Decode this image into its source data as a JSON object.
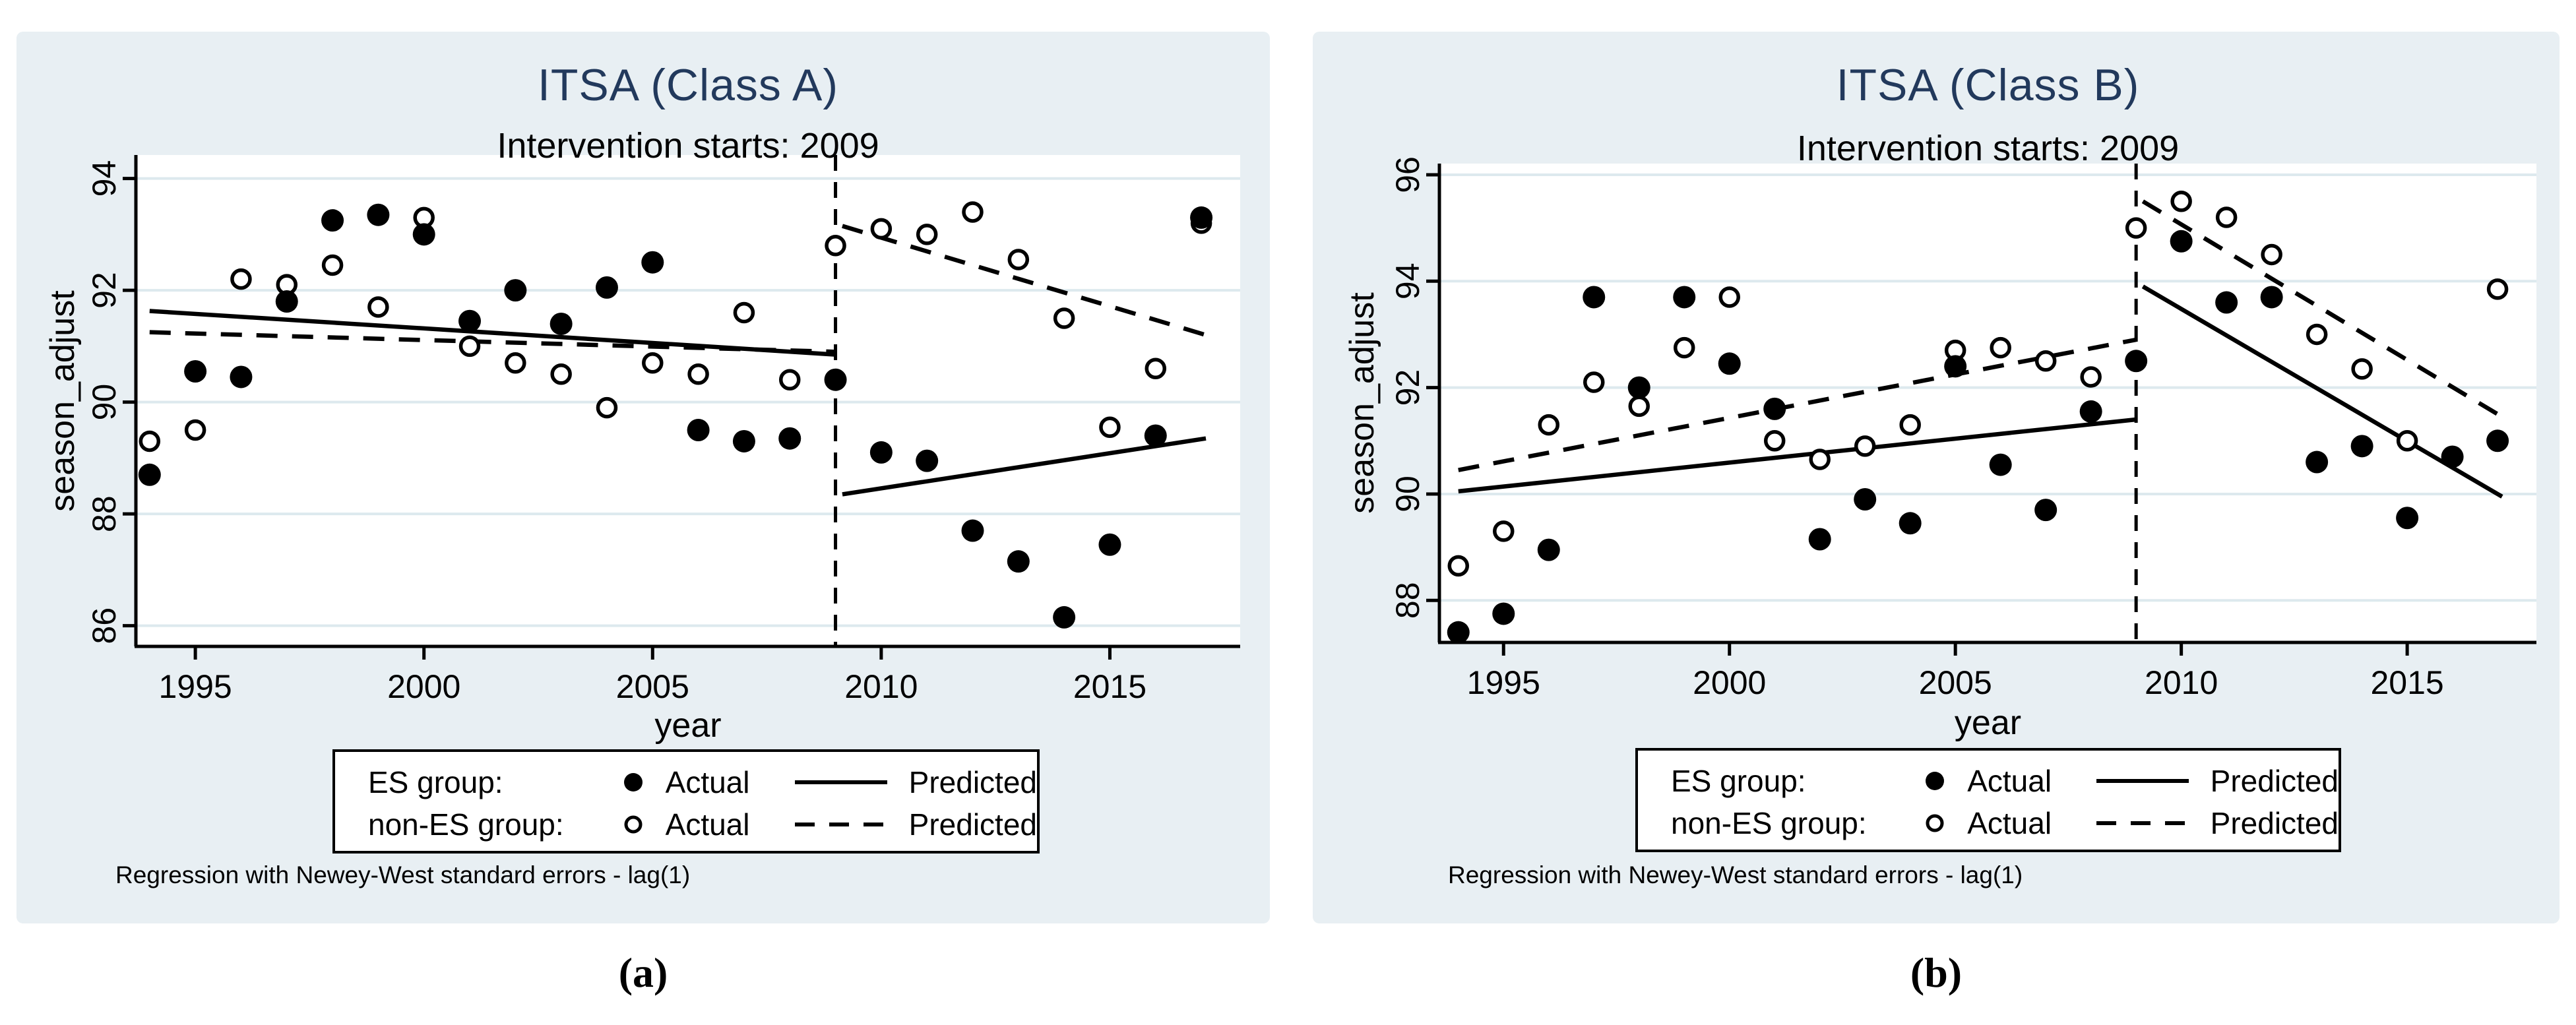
{
  "figure": {
    "note": "Regression with Newey-West standard errors - lag(1)",
    "captions": [
      "(a)",
      "(b)"
    ],
    "legend": {
      "row1_label": "ES group:",
      "row2_label": "non-ES group:",
      "actual_label": "Actual",
      "predicted_label": "Predicted"
    },
    "colors": {
      "panel_background": "#e8eff3",
      "plot_background": "#ffffff",
      "gridline": "#dde9ee",
      "axis": "#000000",
      "title": "#22395c",
      "marker": "#000000"
    }
  },
  "chart_data": {
    "type": "scatter",
    "panels": [
      {
        "title": "ITSA (Class A)",
        "subtitle": "Intervention starts: 2009",
        "xlabel": "year",
        "ylabel": "season_adjust",
        "intervention_year": 2009,
        "xticks": [
          1995,
          2000,
          2005,
          2010,
          2015
        ],
        "yticks": [
          86,
          88,
          90,
          92,
          94
        ],
        "xlim": [
          1993.7,
          2017.85
        ],
        "ylim": [
          85.63,
          94.42
        ],
        "grid": true,
        "series": [
          {
            "name": "ES group Actual",
            "marker": "filled",
            "points": [
              [
                1994,
                88.7
              ],
              [
                1995,
                90.55
              ],
              [
                1996,
                90.45
              ],
              [
                1997,
                91.8
              ],
              [
                1998,
                93.25
              ],
              [
                1999,
                93.35
              ],
              [
                2000,
                93.0
              ],
              [
                2001,
                91.45
              ],
              [
                2002,
                92.0
              ],
              [
                2003,
                91.4
              ],
              [
                2004,
                92.05
              ],
              [
                2005,
                92.5
              ],
              [
                2006,
                89.5
              ],
              [
                2007,
                89.3
              ],
              [
                2008,
                89.35
              ],
              [
                2009,
                90.4
              ],
              [
                2010,
                89.1
              ],
              [
                2011,
                88.95
              ],
              [
                2012,
                87.7
              ],
              [
                2013,
                87.15
              ],
              [
                2014,
                86.15
              ],
              [
                2015,
                87.45
              ],
              [
                2016,
                89.4
              ],
              [
                2017,
                93.3
              ]
            ]
          },
          {
            "name": "non-ES group Actual",
            "marker": "open",
            "points": [
              [
                1994,
                89.3
              ],
              [
                1995,
                89.5
              ],
              [
                1996,
                92.2
              ],
              [
                1997,
                92.1
              ],
              [
                1998,
                92.45
              ],
              [
                1999,
                91.7
              ],
              [
                2000,
                93.3
              ],
              [
                2001,
                91.0
              ],
              [
                2002,
                90.7
              ],
              [
                2003,
                90.5
              ],
              [
                2004,
                89.9
              ],
              [
                2005,
                90.7
              ],
              [
                2006,
                90.5
              ],
              [
                2007,
                91.6
              ],
              [
                2008,
                90.4
              ],
              [
                2009,
                92.8
              ],
              [
                2010,
                93.1
              ],
              [
                2011,
                93.0
              ],
              [
                2012,
                93.4
              ],
              [
                2013,
                92.55
              ],
              [
                2014,
                91.5
              ],
              [
                2015,
                89.55
              ],
              [
                2016,
                90.6
              ],
              [
                2017,
                93.2
              ]
            ]
          },
          {
            "name": "ES group Predicted",
            "line": "solid",
            "segments": [
              [
                [
                  1994,
                  91.63
                ],
                [
                  2009,
                  90.85
                ]
              ],
              [
                [
                  2009.15,
                  88.35
                ],
                [
                  2017.1,
                  89.35
                ]
              ]
            ]
          },
          {
            "name": "non-ES group Predicted",
            "line": "dashed",
            "segments": [
              [
                [
                  1994,
                  91.25
                ],
                [
                  2009,
                  90.9
                ]
              ],
              [
                [
                  2009.15,
                  93.15
                ],
                [
                  2017.1,
                  91.2
                ]
              ]
            ]
          }
        ]
      },
      {
        "title": "ITSA (Class B)",
        "subtitle": "Intervention starts: 2009",
        "xlabel": "year",
        "ylabel": "season_adjust",
        "intervention_year": 2009,
        "xticks": [
          1995,
          2000,
          2005,
          2010,
          2015
        ],
        "yticks": [
          88,
          90,
          92,
          94,
          96
        ],
        "xlim": [
          1993.58,
          2017.86
        ],
        "ylim": [
          87.21,
          96.21
        ],
        "grid": true,
        "series": [
          {
            "name": "ES group Actual",
            "marker": "filled",
            "points": [
              [
                1994,
                87.4
              ],
              [
                1995,
                87.75
              ],
              [
                1996,
                88.95
              ],
              [
                1997,
                93.7
              ],
              [
                1998,
                92.0
              ],
              [
                1999,
                93.7
              ],
              [
                2000,
                92.45
              ],
              [
                2001,
                91.6
              ],
              [
                2002,
                89.15
              ],
              [
                2003,
                89.9
              ],
              [
                2004,
                89.45
              ],
              [
                2005,
                92.4
              ],
              [
                2006,
                90.55
              ],
              [
                2007,
                89.7
              ],
              [
                2008,
                91.55
              ],
              [
                2009,
                92.5
              ],
              [
                2010,
                94.75
              ],
              [
                2011,
                93.6
              ],
              [
                2012,
                93.7
              ],
              [
                2013,
                90.6
              ],
              [
                2014,
                90.9
              ],
              [
                2015,
                89.55
              ],
              [
                2016,
                90.7
              ],
              [
                2017,
                91.0
              ]
            ]
          },
          {
            "name": "non-ES group Actual",
            "marker": "open",
            "points": [
              [
                1994,
                88.65
              ],
              [
                1995,
                89.3
              ],
              [
                1996,
                91.3
              ],
              [
                1997,
                92.1
              ],
              [
                1998,
                91.65
              ],
              [
                1999,
                92.75
              ],
              [
                2000,
                93.7
              ],
              [
                2001,
                91.0
              ],
              [
                2002,
                90.65
              ],
              [
                2003,
                90.9
              ],
              [
                2004,
                91.3
              ],
              [
                2005,
                92.7
              ],
              [
                2006,
                92.75
              ],
              [
                2007,
                92.5
              ],
              [
                2008,
                92.2
              ],
              [
                2009,
                95.0
              ],
              [
                2010,
                95.5
              ],
              [
                2011,
                95.2
              ],
              [
                2012,
                94.5
              ],
              [
                2013,
                93.0
              ],
              [
                2014,
                92.35
              ],
              [
                2015,
                91.0
              ],
              [
                2017,
                93.85
              ]
            ]
          },
          {
            "name": "ES group Predicted",
            "line": "solid",
            "segments": [
              [
                [
                  1994,
                  90.05
                ],
                [
                  2009,
                  91.4
                ]
              ],
              [
                [
                  2009.15,
                  93.9
                ],
                [
                  2017.1,
                  89.95
                ]
              ]
            ]
          },
          {
            "name": "non-ES group Predicted",
            "line": "dashed",
            "segments": [
              [
                [
                  1994,
                  90.45
                ],
                [
                  2009,
                  92.9
                ]
              ],
              [
                [
                  2009.15,
                  95.5
                ],
                [
                  2017.1,
                  91.45
                ]
              ]
            ]
          }
        ]
      }
    ]
  }
}
